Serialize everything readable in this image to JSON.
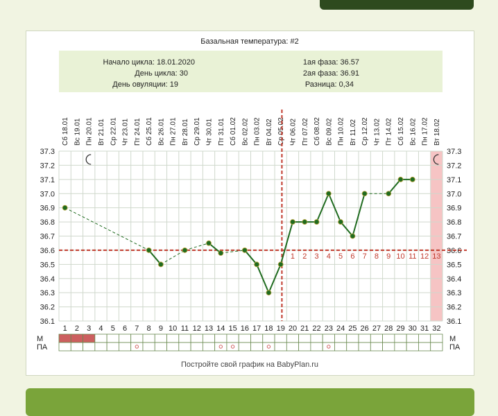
{
  "page": {
    "accent_dark": "#2e4a1e",
    "accent_green": "#7aa43a"
  },
  "chart_data": {
    "type": "line",
    "title": "Базальная температура: #2",
    "info": {
      "left": [
        "Начало цикла: 18.01.2020",
        "День цикла: 30",
        "День овуляции: 19"
      ],
      "right": [
        "1ая фаза: 36.57",
        "2ая фаза: 36.91",
        "Разница: 0,34"
      ]
    },
    "days": [
      1,
      2,
      3,
      4,
      5,
      6,
      7,
      8,
      9,
      10,
      11,
      12,
      13,
      14,
      15,
      16,
      17,
      18,
      19,
      20,
      21,
      22,
      23,
      24,
      25,
      26,
      27,
      28,
      29,
      30,
      31,
      32
    ],
    "dates": [
      "Сб 18.01",
      "Вс 19.01",
      "Пн 20.01",
      "Вт 21.01",
      "Ср 22.01",
      "Чт 23.01",
      "Пт 24.01",
      "Сб 25.01",
      "Вс 26.01",
      "Пн 27.01",
      "Вт 28.01",
      "Ср 29.01",
      "Чт 30.01",
      "Пт 31.01",
      "Сб 01.02",
      "Вс 02.02",
      "Пн 03.02",
      "Вт 04.02",
      "Ср 05.02",
      "Чт 06.02",
      "Пт 07.02",
      "Сб 08.02",
      "Вс 09.02",
      "Пн 10.02",
      "Вт 11.02",
      "Ср 12.02",
      "Чт 13.02",
      "Пт 14.02",
      "Сб 15.02",
      "Вс 16.02",
      "Пн 17.02",
      "Вт 18.02"
    ],
    "y_ticks": [
      "37.3",
      "37.2",
      "37.1",
      "37.0",
      "36.9",
      "36.8",
      "36.7",
      "36.6",
      "36.5",
      "36.4",
      "36.3",
      "36.2",
      "36.1"
    ],
    "ylim": [
      36.1,
      37.3
    ],
    "xlim": [
      1,
      32
    ],
    "temperatures": [
      {
        "day": 1,
        "temp": 36.9
      },
      {
        "day": 8,
        "temp": 36.6
      },
      {
        "day": 9,
        "temp": 36.5
      },
      {
        "day": 11,
        "temp": 36.6
      },
      {
        "day": 13,
        "temp": 36.65
      },
      {
        "day": 14,
        "temp": 36.58
      },
      {
        "day": 16,
        "temp": 36.6
      },
      {
        "day": 17,
        "temp": 36.5
      },
      {
        "day": 18,
        "temp": 36.3
      },
      {
        "day": 19,
        "temp": 36.5
      },
      {
        "day": 20,
        "temp": 36.8
      },
      {
        "day": 21,
        "temp": 36.8
      },
      {
        "day": 22,
        "temp": 36.8
      },
      {
        "day": 23,
        "temp": 37.0
      },
      {
        "day": 24,
        "temp": 36.8
      },
      {
        "day": 25,
        "temp": 36.7
      },
      {
        "day": 26,
        "temp": 37.0
      },
      {
        "day": 28,
        "temp": 37.0
      },
      {
        "day": 29,
        "temp": 37.1
      },
      {
        "day": 30,
        "temp": 37.1
      }
    ],
    "coverline": 36.6,
    "ovulation_day": 19,
    "phase_numbers": [
      "1",
      "2",
      "3",
      "4",
      "5",
      "6",
      "7",
      "8",
      "9",
      "10",
      "11",
      "12",
      "13"
    ],
    "phase_start_day": 20,
    "highlight_day": 32,
    "m_label": "М",
    "pa_label": "ПА",
    "m_days": [
      1,
      2,
      3
    ],
    "pa_days": [
      7,
      14,
      15,
      18,
      23
    ],
    "footer": "Постройте свой график на BabyPlan.ru",
    "colors": {
      "line": "#1f6b1f",
      "marker_fill": "#1f6b1f",
      "coverline": "#c0392b",
      "highlight": "#f6c4c4",
      "info_bg": "#e9f2d6",
      "m_fill": "#cc5f5f",
      "pa_mark": "#d06060"
    }
  }
}
